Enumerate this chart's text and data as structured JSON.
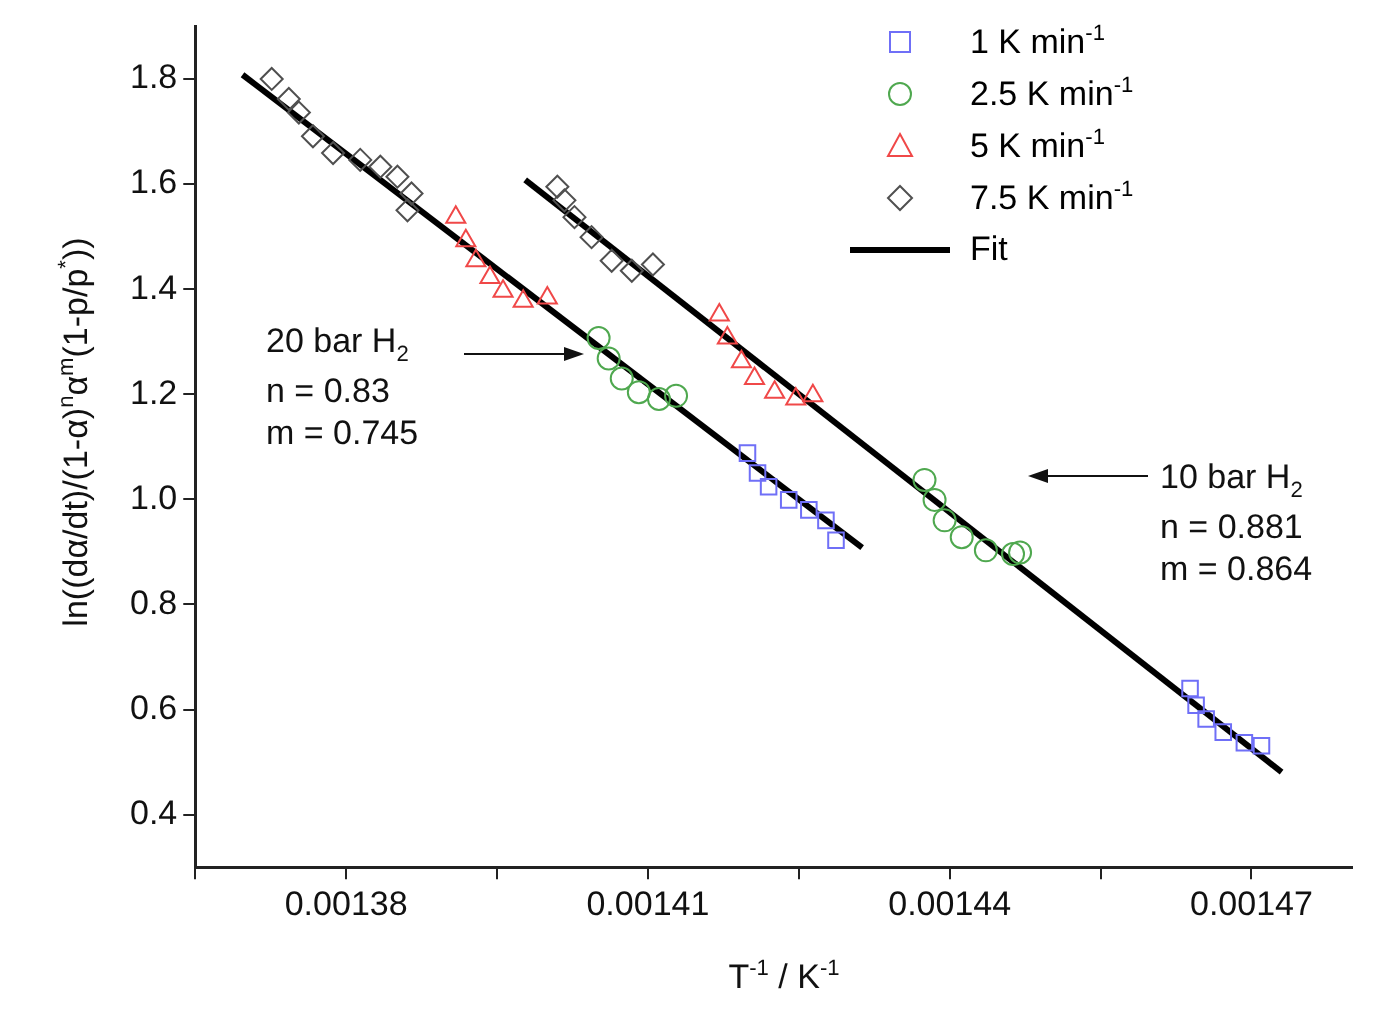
{
  "chart_data": {
    "type": "scatter",
    "xlabel": "T$^{-1}$ / K$^{-1}$",
    "ylabel": "ln((dα/dt)/(1-α)$^{n}$α$^{m}$(1-p/p$^{*}$))",
    "xlim": [
      0.001365,
      0.00148
    ],
    "xticks": [
      {
        "value": 0.001365,
        "label": null
      },
      0.00138,
      {
        "value": 0.001395,
        "label": null
      },
      0.00141,
      {
        "value": 0.001425,
        "label": null
      },
      0.00144,
      {
        "value": 0.001455,
        "label": null
      },
      0.00147
    ],
    "ylim": [
      0.3,
      1.9
    ],
    "yticks": [
      0.4,
      0.6,
      0.8,
      {
        "value": 1,
        "label": "1.0"
      },
      1.2,
      1.4,
      1.6,
      1.8
    ],
    "grid": false,
    "legend": "top right",
    "series": [
      {
        "name": "1 K min$^{-1}$",
        "color": "#6f6ff7",
        "marker": "square",
        "x": [
          0.0014199,
          0.0014209,
          0.001422,
          0.001424,
          0.001426,
          0.0014277,
          0.0014287,
          0.0014639,
          0.0014645,
          0.0014655,
          0.0014672,
          0.0014693,
          0.001471
        ],
        "values": [
          1.088,
          1.05,
          1.024,
          0.999,
          0.98,
          0.96,
          0.922,
          0.64,
          0.608,
          0.582,
          0.557,
          0.537,
          0.531
        ]
      },
      {
        "name": "2.5 K min$^{-1}$",
        "color": "#4fa84f",
        "marker": "circle",
        "x": [
          0.0014051,
          0.0014061,
          0.0014074,
          0.0014091,
          0.0014111,
          0.0014128,
          0.0014375,
          0.0014385,
          0.0014395,
          0.0014412,
          0.0014436,
          0.0014463,
          0.001447
        ],
        "values": [
          1.307,
          1.268,
          1.23,
          1.204,
          1.191,
          1.197,
          1.037,
          0.999,
          0.96,
          0.928,
          0.903,
          0.896,
          0.899
        ]
      },
      {
        "name": "5 K min$^{-1}$",
        "color": "#f04848",
        "marker": "triangle",
        "x": [
          0.0013909,
          0.0013919,
          0.0013929,
          0.0013943,
          0.0013956,
          0.0013976,
          0.0014,
          0.0014171,
          0.0014179,
          0.0014193,
          0.0014206,
          0.0014226,
          0.0014247,
          0.0014264
        ],
        "values": [
          1.537,
          1.492,
          1.454,
          1.422,
          1.396,
          1.377,
          1.383,
          1.351,
          1.307,
          1.262,
          1.23,
          1.204,
          1.191,
          1.197
        ]
      },
      {
        "name": "7.5 K min$^{-1}$",
        "color": "#505050",
        "marker": "diamond",
        "x": [
          0.0013726,
          0.0013743,
          0.0013753,
          0.0013767,
          0.0013787,
          0.0013814,
          0.0013834,
          0.0013851,
          0.0013865,
          0.0013861,
          0.001401,
          0.0014017,
          0.0014027,
          0.0014044,
          0.0014064,
          0.0014084,
          0.0014105
        ],
        "values": [
          1.8,
          1.762,
          1.736,
          1.691,
          1.659,
          1.646,
          1.633,
          1.614,
          1.582,
          1.55,
          1.595,
          1.569,
          1.537,
          1.499,
          1.454,
          1.435,
          1.447
        ]
      },
      {
        "name": "Fit",
        "type": "line",
        "color": "#000000",
        "marker": "none",
        "line_style": "solid",
        "x": [
          0.0013697,
          0.0014313
        ],
        "values": [
          1.808,
          0.908
        ]
      },
      {
        "type": "line",
        "color": "#000000",
        "marker": "none",
        "line_style": "solid",
        "x": [
          0.0013978,
          0.001473
        ],
        "values": [
          1.608,
          0.481
        ]
      }
    ],
    "annotations": [
      "20 bar H$_{2}$\nn = 0.83\nm = 0.745",
      "10 bar H$_{2}$\nn = 0.881\nm = 0.864"
    ]
  }
}
